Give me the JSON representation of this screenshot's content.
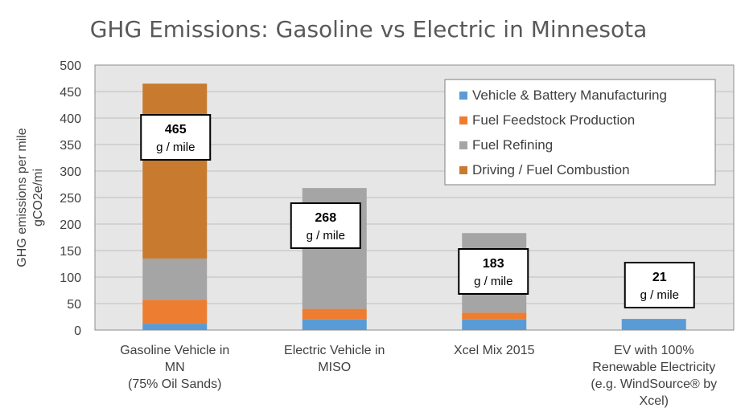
{
  "chart_data": {
    "type": "bar",
    "stacked": true,
    "title": "GHG Emissions: Gasoline vs Electric in Minnesota",
    "ylabel_lines": [
      "GHG emissions per mile",
      "gCO2e/mi"
    ],
    "ylim": [
      0,
      500
    ],
    "yticks": [
      0,
      50,
      100,
      150,
      200,
      250,
      300,
      350,
      400,
      450,
      500
    ],
    "grid": true,
    "legend_position": "top-right",
    "categories": [
      [
        "Gasoline Vehicle in",
        "MN",
        "(75% Oil Sands)"
      ],
      [
        "Electric Vehicle in",
        "MISO"
      ],
      [
        "Xcel Mix 2015"
      ],
      [
        "EV with 100%",
        "Renewable Electricity",
        "(e.g. WindSource® by",
        "Xcel)"
      ]
    ],
    "series": [
      {
        "name": "Vehicle & Battery Manufacturing",
        "color": "#5b9bd5",
        "values": [
          12,
          20,
          20,
          21
        ]
      },
      {
        "name": "Fuel Feedstock Production",
        "color": "#ed7d31",
        "values": [
          45,
          20,
          13,
          0
        ]
      },
      {
        "name": "Fuel Refining",
        "color": "#a5a5a5",
        "values": [
          78,
          228,
          150,
          0
        ]
      },
      {
        "name": "Driving / Fuel Combustion",
        "color": "#c87a2e",
        "values": [
          330,
          0,
          0,
          0
        ]
      }
    ],
    "callouts": [
      {
        "value": "465",
        "unit": "g / mile"
      },
      {
        "value": "268",
        "unit": "g / mile"
      },
      {
        "value": "183",
        "unit": "g / mile"
      },
      {
        "value": "21",
        "unit": "g / mile"
      }
    ],
    "plot_background": "#e7e6e6",
    "grid_color": "#bfbfbf"
  }
}
